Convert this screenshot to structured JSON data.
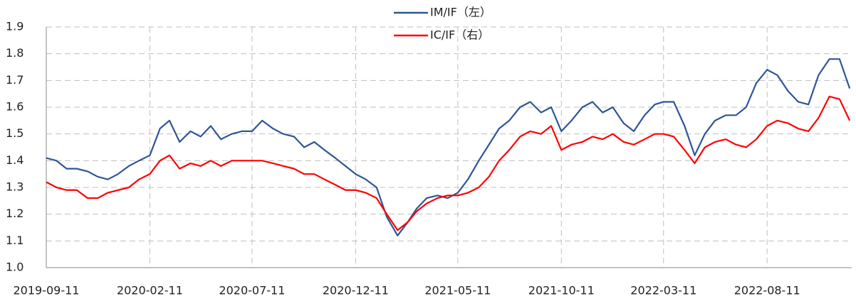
{
  "chart_data": {
    "type": "line",
    "x": [
      "2019-09-11",
      "2019-09-26",
      "2019-10-11",
      "2019-10-26",
      "2019-11-11",
      "2019-11-26",
      "2019-12-11",
      "2019-12-26",
      "2020-01-11",
      "2020-01-26",
      "2020-02-11",
      "2020-02-26",
      "2020-03-11",
      "2020-03-26",
      "2020-04-11",
      "2020-04-26",
      "2020-05-11",
      "2020-05-26",
      "2020-06-11",
      "2020-06-26",
      "2020-07-11",
      "2020-07-26",
      "2020-08-11",
      "2020-08-26",
      "2020-09-11",
      "2020-09-26",
      "2020-10-11",
      "2020-10-26",
      "2020-11-11",
      "2020-11-26",
      "2020-12-11",
      "2020-12-26",
      "2021-01-11",
      "2021-01-26",
      "2021-02-11",
      "2021-02-26",
      "2021-03-11",
      "2021-03-26",
      "2021-04-11",
      "2021-04-26",
      "2021-05-11",
      "2021-05-26",
      "2021-06-11",
      "2021-06-26",
      "2021-07-11",
      "2021-07-26",
      "2021-08-11",
      "2021-08-26",
      "2021-09-11",
      "2021-09-26",
      "2021-10-11",
      "2021-10-26",
      "2021-11-11",
      "2021-11-26",
      "2021-12-11",
      "2021-12-26",
      "2022-01-11",
      "2022-01-26",
      "2022-02-11",
      "2022-02-26",
      "2022-03-11",
      "2022-03-26",
      "2022-04-11",
      "2022-04-26",
      "2022-05-11",
      "2022-05-26",
      "2022-06-11",
      "2022-06-26",
      "2022-07-11",
      "2022-07-26",
      "2022-08-11",
      "2022-08-26",
      "2022-09-11",
      "2022-09-26",
      "2022-10-11",
      "2022-10-26",
      "2022-11-11",
      "2022-11-26",
      "2022-12-11"
    ],
    "series": [
      {
        "name": "IM/IF（左）",
        "color": "#2f5597",
        "values": [
          1.41,
          1.4,
          1.37,
          1.37,
          1.36,
          1.34,
          1.33,
          1.35,
          1.38,
          1.4,
          1.42,
          1.52,
          1.55,
          1.47,
          1.51,
          1.49,
          1.53,
          1.48,
          1.5,
          1.51,
          1.51,
          1.55,
          1.52,
          1.5,
          1.49,
          1.45,
          1.47,
          1.44,
          1.41,
          1.38,
          1.35,
          1.33,
          1.3,
          1.19,
          1.12,
          1.17,
          1.22,
          1.26,
          1.27,
          1.26,
          1.28,
          1.33,
          1.4,
          1.46,
          1.52,
          1.55,
          1.6,
          1.62,
          1.58,
          1.6,
          1.51,
          1.55,
          1.6,
          1.62,
          1.58,
          1.6,
          1.54,
          1.51,
          1.57,
          1.61,
          1.62,
          1.62,
          1.53,
          1.42,
          1.5,
          1.55,
          1.57,
          1.57,
          1.6,
          1.69,
          1.74,
          1.72,
          1.66,
          1.62,
          1.61,
          1.72,
          1.78,
          1.78,
          1.67
        ]
      },
      {
        "name": "IC/IF（右）",
        "color": "#ff0000",
        "values": [
          1.32,
          1.3,
          1.29,
          1.29,
          1.26,
          1.26,
          1.28,
          1.29,
          1.3,
          1.33,
          1.35,
          1.4,
          1.42,
          1.37,
          1.39,
          1.38,
          1.4,
          1.38,
          1.4,
          1.4,
          1.4,
          1.4,
          1.39,
          1.38,
          1.37,
          1.35,
          1.35,
          1.33,
          1.31,
          1.29,
          1.29,
          1.28,
          1.26,
          1.2,
          1.14,
          1.17,
          1.21,
          1.24,
          1.26,
          1.27,
          1.27,
          1.28,
          1.3,
          1.34,
          1.4,
          1.44,
          1.49,
          1.51,
          1.5,
          1.53,
          1.44,
          1.46,
          1.47,
          1.49,
          1.48,
          1.5,
          1.47,
          1.46,
          1.48,
          1.5,
          1.5,
          1.49,
          1.44,
          1.39,
          1.45,
          1.47,
          1.48,
          1.46,
          1.45,
          1.48,
          1.53,
          1.55,
          1.54,
          1.52,
          1.51,
          1.56,
          1.64,
          1.63,
          1.55
        ]
      }
    ],
    "xlim": [
      "2019-09-11",
      "2022-12-14"
    ],
    "xticks": [
      "2019-09-11",
      "2020-02-11",
      "2020-07-11",
      "2020-12-11",
      "2021-05-11",
      "2021-10-11",
      "2022-03-11",
      "2022-08-11"
    ],
    "ylim": [
      1.0,
      1.9
    ],
    "yticks": [
      {
        "value": 1,
        "label": "1.0"
      },
      1.1,
      1.2,
      1.3,
      1.4,
      1.5,
      1.6,
      1.7,
      1.8,
      1.9
    ],
    "grid": true
  }
}
